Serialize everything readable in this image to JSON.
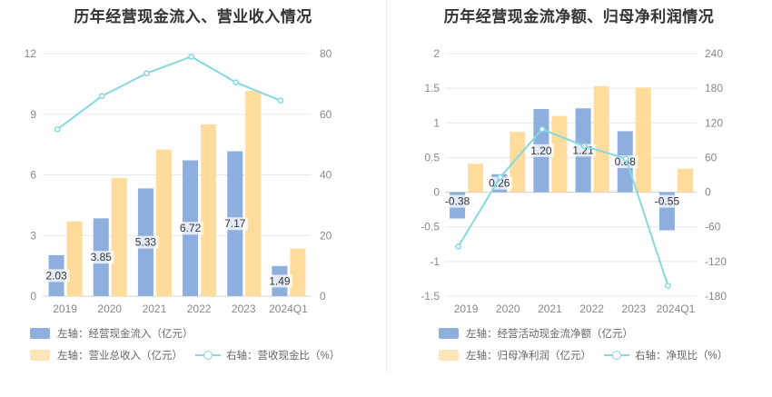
{
  "colors": {
    "bar1": "#8eaedd",
    "bar2": "#ffdb9c",
    "line": "#86d9df",
    "grid": "#e8e8e8",
    "axis_text": "#888888"
  },
  "chart_data": [
    {
      "type": "bar",
      "title": "历年经营现金流入、营业收入情况",
      "categories": [
        "2019",
        "2020",
        "2021",
        "2022",
        "2023",
        "2024Q1"
      ],
      "left_axis": {
        "ticks": [
          "0",
          "3",
          "6",
          "9",
          "12"
        ],
        "ylim": [
          0,
          12
        ]
      },
      "right_axis": {
        "ticks": [
          "0",
          "20",
          "40",
          "60",
          "80"
        ],
        "ylim": [
          0,
          80
        ]
      },
      "series": [
        {
          "name": "左轴：经营现金流入（亿元）",
          "kind": "bar",
          "axis": "left",
          "values": [
            2.03,
            3.85,
            5.33,
            6.72,
            7.17,
            1.49
          ],
          "labels": [
            "2.03",
            "3.85",
            "5.33",
            "6.72",
            "7.17",
            "1.49"
          ]
        },
        {
          "name": "左轴：营业总收入（亿元）",
          "kind": "bar",
          "axis": "left",
          "values": [
            3.7,
            5.85,
            7.25,
            8.5,
            10.15,
            2.35
          ]
        },
        {
          "name": "右轴：营收现金比（%）",
          "kind": "line",
          "axis": "right",
          "values": [
            55,
            66,
            73.5,
            79,
            70.5,
            64.5
          ]
        }
      ]
    },
    {
      "type": "bar",
      "title": "历年经营现金流净额、归母净利润情况",
      "categories": [
        "2019",
        "2020",
        "2021",
        "2022",
        "2023",
        "2024Q1"
      ],
      "left_axis": {
        "ticks": [
          "-1.5",
          "-1",
          "-0.5",
          "0",
          "0.5",
          "1",
          "1.5",
          "2"
        ],
        "ylim": [
          -1.5,
          2
        ]
      },
      "right_axis": {
        "ticks": [
          "-180",
          "-120",
          "-60",
          "0",
          "60",
          "120",
          "180",
          "240"
        ],
        "ylim": [
          -180,
          240
        ]
      },
      "series": [
        {
          "name": "左轴：经营活动现金流净额（亿元）",
          "kind": "bar",
          "axis": "left",
          "values": [
            -0.38,
            0.26,
            1.2,
            1.21,
            0.88,
            -0.55
          ],
          "labels": [
            "-0.38",
            "0.26",
            "1.20",
            "1.21",
            "0.88",
            "-0.55"
          ]
        },
        {
          "name": "左轴：归母净利润（亿元）",
          "kind": "bar",
          "axis": "left",
          "values": [
            0.41,
            0.87,
            1.1,
            1.53,
            1.51,
            0.34
          ]
        },
        {
          "name": "右轴：净现比（%）",
          "kind": "line",
          "axis": "right",
          "values": [
            -94,
            26,
            109,
            80,
            58,
            -162
          ]
        }
      ]
    }
  ]
}
